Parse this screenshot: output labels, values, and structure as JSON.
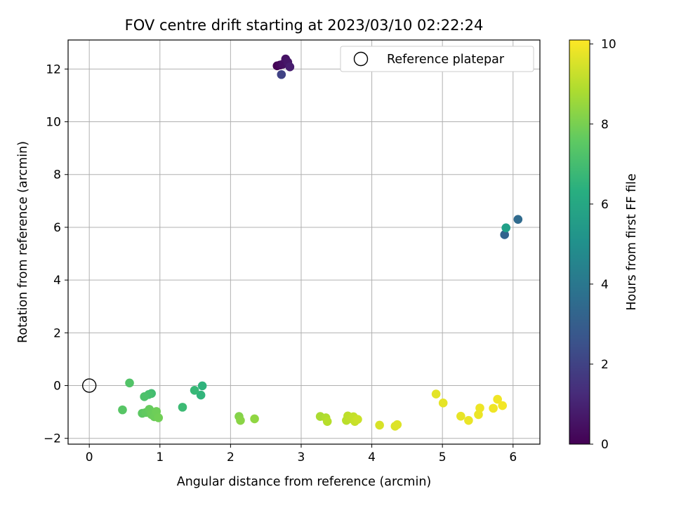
{
  "chart_data": {
    "type": "scatter",
    "title": "FOV centre drift starting at 2023/03/10 02:22:24",
    "xlabel": "Angular distance from reference (arcmin)",
    "ylabel": "Rotation from reference (arcmin)",
    "xlim": [
      -0.3,
      6.38
    ],
    "ylim": [
      -2.22,
      13.1
    ],
    "xticks": [
      0,
      1,
      2,
      3,
      4,
      5,
      6
    ],
    "yticks": [
      -2,
      0,
      2,
      4,
      6,
      8,
      10,
      12
    ],
    "grid": true,
    "legend": {
      "position": "top-right",
      "entries": [
        "Reference platepar"
      ]
    },
    "reference_point": {
      "x": 0,
      "y": 0,
      "label": "Reference platepar",
      "marker": "open-circle"
    },
    "colorbar": {
      "label": "Hours from first FF file",
      "colormap": "viridis",
      "range": [
        0,
        10.1
      ],
      "ticks": [
        0,
        2,
        4,
        6,
        8,
        10
      ]
    },
    "points": [
      {
        "x": 2.66,
        "y": 12.12,
        "hours": 0.0
      },
      {
        "x": 2.7,
        "y": 12.15,
        "hours": 0.2
      },
      {
        "x": 2.74,
        "y": 12.18,
        "hours": 0.4
      },
      {
        "x": 2.78,
        "y": 12.38,
        "hours": 0.5
      },
      {
        "x": 2.81,
        "y": 12.26,
        "hours": 0.6
      },
      {
        "x": 2.84,
        "y": 12.08,
        "hours": 0.8
      },
      {
        "x": 2.72,
        "y": 11.79,
        "hours": 2.0
      },
      {
        "x": 5.88,
        "y": 5.72,
        "hours": 3.2
      },
      {
        "x": 6.07,
        "y": 6.3,
        "hours": 3.5
      },
      {
        "x": 5.9,
        "y": 5.98,
        "hours": 5.7
      },
      {
        "x": 1.6,
        "y": -0.01,
        "hours": 6.5
      },
      {
        "x": 1.58,
        "y": -0.36,
        "hours": 6.6
      },
      {
        "x": 1.49,
        "y": -0.18,
        "hours": 6.8
      },
      {
        "x": 1.32,
        "y": -0.82,
        "hours": 6.9
      },
      {
        "x": 0.88,
        "y": -0.3,
        "hours": 7.0
      },
      {
        "x": 0.84,
        "y": -0.34,
        "hours": 7.1
      },
      {
        "x": 0.78,
        "y": -0.42,
        "hours": 7.2
      },
      {
        "x": 0.57,
        "y": 0.1,
        "hours": 7.3
      },
      {
        "x": 0.47,
        "y": -0.92,
        "hours": 7.4
      },
      {
        "x": 0.75,
        "y": -1.05,
        "hours": 7.5
      },
      {
        "x": 0.8,
        "y": -1.02,
        "hours": 7.6
      },
      {
        "x": 0.85,
        "y": -0.9,
        "hours": 7.7
      },
      {
        "x": 0.88,
        "y": -1.1,
        "hours": 7.75
      },
      {
        "x": 0.92,
        "y": -1.18,
        "hours": 7.8
      },
      {
        "x": 0.95,
        "y": -0.98,
        "hours": 7.85
      },
      {
        "x": 0.98,
        "y": -1.22,
        "hours": 7.9
      },
      {
        "x": 2.12,
        "y": -1.17,
        "hours": 8.2
      },
      {
        "x": 2.14,
        "y": -1.32,
        "hours": 8.3
      },
      {
        "x": 2.34,
        "y": -1.26,
        "hours": 8.4
      },
      {
        "x": 3.27,
        "y": -1.17,
        "hours": 8.8
      },
      {
        "x": 3.35,
        "y": -1.22,
        "hours": 8.9
      },
      {
        "x": 3.37,
        "y": -1.36,
        "hours": 9.0
      },
      {
        "x": 3.64,
        "y": -1.32,
        "hours": 9.05
      },
      {
        "x": 3.66,
        "y": -1.15,
        "hours": 9.1
      },
      {
        "x": 3.7,
        "y": -1.25,
        "hours": 9.15
      },
      {
        "x": 3.74,
        "y": -1.18,
        "hours": 9.2
      },
      {
        "x": 3.76,
        "y": -1.36,
        "hours": 9.25
      },
      {
        "x": 3.8,
        "y": -1.28,
        "hours": 9.3
      },
      {
        "x": 4.11,
        "y": -1.5,
        "hours": 9.5
      },
      {
        "x": 4.33,
        "y": -1.54,
        "hours": 9.55
      },
      {
        "x": 4.36,
        "y": -1.48,
        "hours": 9.6
      },
      {
        "x": 4.91,
        "y": -0.32,
        "hours": 9.7
      },
      {
        "x": 5.01,
        "y": -0.66,
        "hours": 9.72
      },
      {
        "x": 5.26,
        "y": -1.16,
        "hours": 9.75
      },
      {
        "x": 5.37,
        "y": -1.32,
        "hours": 9.8
      },
      {
        "x": 5.51,
        "y": -1.1,
        "hours": 9.82
      },
      {
        "x": 5.53,
        "y": -0.85,
        "hours": 9.85
      },
      {
        "x": 5.72,
        "y": -0.86,
        "hours": 9.88
      },
      {
        "x": 5.78,
        "y": -0.52,
        "hours": 9.9
      },
      {
        "x": 5.85,
        "y": -0.76,
        "hours": 9.95
      }
    ]
  }
}
